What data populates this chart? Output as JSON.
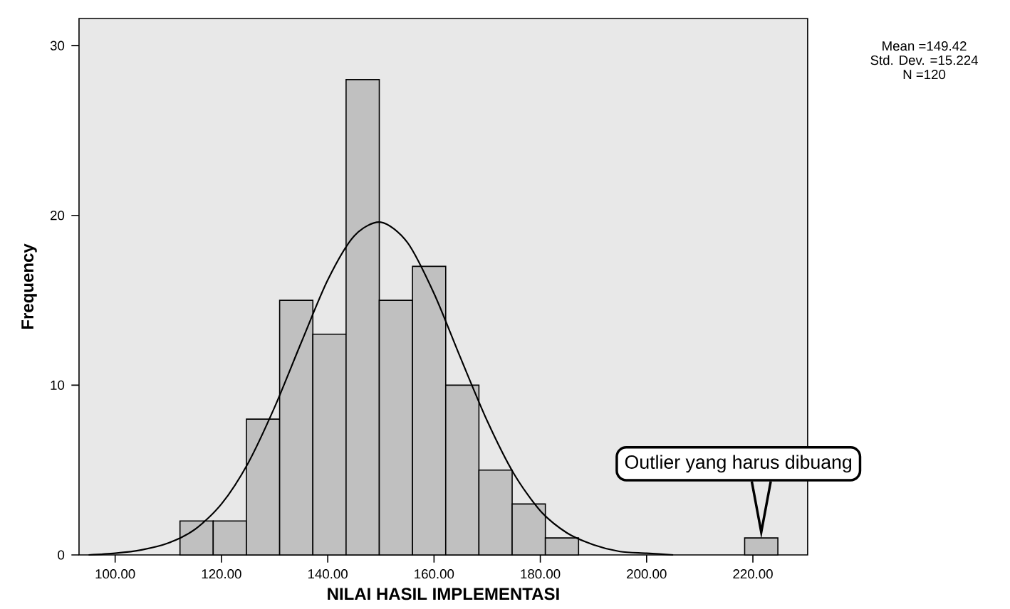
{
  "chart_data": {
    "type": "histogram",
    "xlabel": "NILAI HASIL IMPLEMENTASI",
    "ylabel": "Frequency",
    "xlim": [
      93.2,
      230.3
    ],
    "ylim": [
      0,
      31.6
    ],
    "xticks": [
      {
        "value": 100,
        "label": "100.00"
      },
      {
        "value": 120,
        "label": "120.00"
      },
      {
        "value": 140,
        "label": "140.00"
      },
      {
        "value": 160,
        "label": "160.00"
      },
      {
        "value": 180,
        "label": "180.00"
      },
      {
        "value": 200,
        "label": "200.00"
      },
      {
        "value": 220,
        "label": "220.00"
      }
    ],
    "yticks": [
      0,
      10,
      20,
      30
    ],
    "grid": false,
    "series": [
      {
        "color": "#c0c0c0",
        "bins": [
          112.2,
          118.45,
          124.7,
          130.95,
          137.2,
          143.45,
          149.7,
          155.95,
          162.2,
          168.45,
          174.7,
          180.95,
          187.2,
          193.45,
          199.7,
          205.95,
          212.2,
          218.45,
          224.7
        ],
        "values": [
          2,
          2,
          8,
          15,
          13,
          28,
          15,
          17,
          10,
          5,
          3,
          1,
          0,
          0,
          0,
          0,
          0,
          1
        ]
      },
      {
        "type": "line",
        "color": "#000000",
        "x": [
          95,
          100,
          105,
          110,
          115,
          120,
          125,
          130,
          135,
          140,
          145,
          150,
          155,
          160,
          165,
          170,
          175,
          180,
          185,
          190,
          195,
          200,
          205
        ],
        "values": [
          0,
          0.1,
          0.3,
          0.7,
          1.5,
          3,
          5.4,
          8.7,
          12.5,
          16.2,
          18.8,
          19.6,
          18.4,
          15.4,
          11.6,
          7.9,
          4.8,
          2.6,
          1.3,
          0.6,
          0.2,
          0.1,
          0
        ]
      }
    ],
    "annotations": [
      "Outlier yang harus dibuang",
      "Mean =149.42",
      "Std. Dev. =15.224",
      "N =120"
    ]
  }
}
